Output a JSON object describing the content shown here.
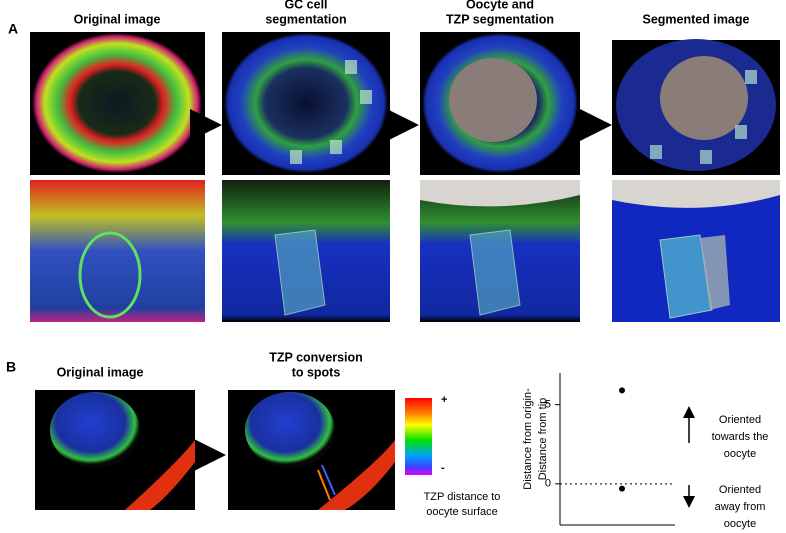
{
  "panel_a": {
    "label": "A",
    "titles": [
      [
        "Original image"
      ],
      [
        "GC cell",
        "segmentation"
      ],
      [
        "Oocyte and",
        "TZP segmentation"
      ],
      [
        "Segmented image"
      ]
    ]
  },
  "panel_b": {
    "label": "B",
    "titles": [
      [
        "Original image"
      ],
      [
        "TZP conversion",
        "to spots"
      ]
    ],
    "colorbar": {
      "max_label": "+",
      "min_label": "-",
      "caption": [
        "TZP distance to",
        "oocyte surface"
      ]
    }
  },
  "chart_data": {
    "type": "dot",
    "y_label": [
      "Distance from origin-",
      "Distance from tip"
    ],
    "values": [
      5.9,
      -0.3
    ],
    "color": "#000000",
    "ylim": [
      -2.6,
      7
    ],
    "yticks": [
      0,
      5
    ],
    "reference_line": 0,
    "annotations": [
      [
        "Oriented",
        "towards the",
        "oocyte"
      ],
      [
        "Oriented",
        "away from",
        "oocyte"
      ]
    ]
  }
}
